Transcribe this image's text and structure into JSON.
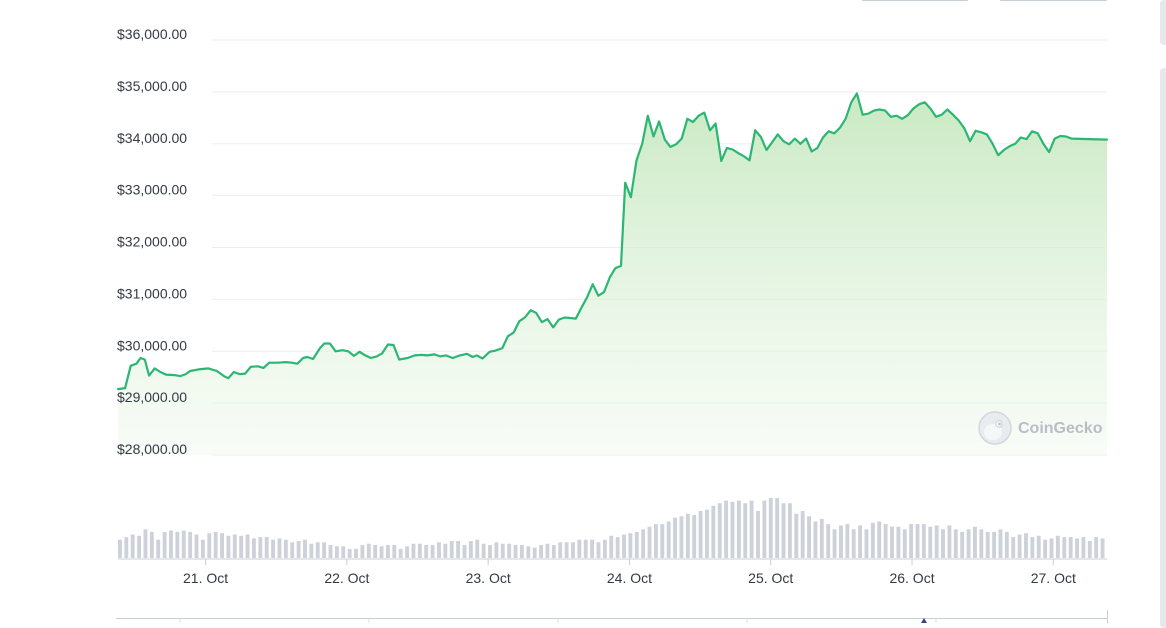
{
  "chart_data": {
    "type": "line",
    "ylim": [
      28000,
      36000
    ],
    "y_ticks": [
      "$28,000.00",
      "$29,000.00",
      "$30,000.00",
      "$31,000.00",
      "$32,000.00",
      "$33,000.00",
      "$34,000.00",
      "$35,000.00",
      "$36,000.00"
    ],
    "y_tick_values": [
      28000,
      29000,
      30000,
      31000,
      32000,
      33000,
      34000,
      35000,
      36000
    ],
    "x_ticks": [
      "21. Oct",
      "22. Oct",
      "23. Oct",
      "24. Oct",
      "25. Oct",
      "26. Oct",
      "27. Oct"
    ],
    "x_range_days": [
      20.38,
      27.38
    ],
    "x_tick_values_days": [
      21,
      22,
      23,
      24,
      25,
      26,
      27
    ],
    "grid": true,
    "series": [
      {
        "values": [
          [
            20.38,
            29270
          ],
          [
            20.43,
            29290
          ],
          [
            20.47,
            29720
          ],
          [
            20.51,
            29760
          ],
          [
            20.54,
            29870
          ],
          [
            20.57,
            29840
          ],
          [
            20.6,
            29530
          ],
          [
            20.64,
            29670
          ],
          [
            20.68,
            29600
          ],
          [
            20.72,
            29550
          ],
          [
            20.78,
            29540
          ],
          [
            20.82,
            29520
          ],
          [
            20.86,
            29560
          ],
          [
            20.89,
            29620
          ],
          [
            20.95,
            29650
          ],
          [
            21.02,
            29670
          ],
          [
            21.08,
            29620
          ],
          [
            21.13,
            29520
          ],
          [
            21.16,
            29480
          ],
          [
            21.2,
            29600
          ],
          [
            21.24,
            29560
          ],
          [
            21.28,
            29570
          ],
          [
            21.32,
            29700
          ],
          [
            21.37,
            29710
          ],
          [
            21.41,
            29680
          ],
          [
            21.45,
            29780
          ],
          [
            21.51,
            29780
          ],
          [
            21.57,
            29790
          ],
          [
            21.61,
            29780
          ],
          [
            21.65,
            29760
          ],
          [
            21.69,
            29870
          ],
          [
            21.72,
            29890
          ],
          [
            21.76,
            29850
          ],
          [
            21.81,
            30060
          ],
          [
            21.84,
            30150
          ],
          [
            21.88,
            30150
          ],
          [
            21.92,
            30000
          ],
          [
            21.97,
            30020
          ],
          [
            22.01,
            30000
          ],
          [
            22.05,
            29910
          ],
          [
            22.09,
            29990
          ],
          [
            22.13,
            29920
          ],
          [
            22.17,
            29870
          ],
          [
            22.21,
            29900
          ],
          [
            22.25,
            29960
          ],
          [
            22.29,
            30130
          ],
          [
            22.33,
            30120
          ],
          [
            22.37,
            29840
          ],
          [
            22.43,
            29870
          ],
          [
            22.48,
            29920
          ],
          [
            22.53,
            29930
          ],
          [
            22.57,
            29920
          ],
          [
            22.62,
            29940
          ],
          [
            22.66,
            29900
          ],
          [
            22.7,
            29920
          ],
          [
            22.75,
            29870
          ],
          [
            22.8,
            29920
          ],
          [
            22.85,
            29950
          ],
          [
            22.89,
            29890
          ],
          [
            22.92,
            29920
          ],
          [
            22.96,
            29860
          ],
          [
            23.01,
            29990
          ],
          [
            23.05,
            30010
          ],
          [
            23.1,
            30060
          ],
          [
            23.14,
            30290
          ],
          [
            23.18,
            30360
          ],
          [
            23.22,
            30580
          ],
          [
            23.26,
            30650
          ],
          [
            23.3,
            30790
          ],
          [
            23.34,
            30740
          ],
          [
            23.38,
            30560
          ],
          [
            23.42,
            30620
          ],
          [
            23.46,
            30460
          ],
          [
            23.5,
            30610
          ],
          [
            23.54,
            30650
          ],
          [
            23.58,
            30640
          ],
          [
            23.62,
            30630
          ],
          [
            23.66,
            30840
          ],
          [
            23.7,
            31040
          ],
          [
            23.74,
            31290
          ],
          [
            23.78,
            31070
          ],
          [
            23.82,
            31140
          ],
          [
            23.86,
            31420
          ],
          [
            23.9,
            31600
          ],
          [
            23.94,
            31650
          ],
          [
            23.97,
            33250
          ],
          [
            24.01,
            32970
          ],
          [
            24.05,
            33680
          ],
          [
            24.09,
            34000
          ],
          [
            24.13,
            34540
          ],
          [
            24.17,
            34140
          ],
          [
            24.21,
            34430
          ],
          [
            24.25,
            34080
          ],
          [
            24.29,
            33940
          ],
          [
            24.33,
            33990
          ],
          [
            24.37,
            34100
          ],
          [
            24.41,
            34480
          ],
          [
            24.45,
            34420
          ],
          [
            24.49,
            34540
          ],
          [
            24.53,
            34600
          ],
          [
            24.57,
            34260
          ],
          [
            24.61,
            34390
          ],
          [
            24.65,
            33670
          ],
          [
            24.69,
            33920
          ],
          [
            24.73,
            33890
          ],
          [
            24.77,
            33820
          ],
          [
            24.81,
            33760
          ],
          [
            24.85,
            33680
          ],
          [
            24.89,
            34260
          ],
          [
            24.93,
            34130
          ],
          [
            24.97,
            33880
          ],
          [
            25.01,
            34030
          ],
          [
            25.05,
            34180
          ],
          [
            25.09,
            34050
          ],
          [
            25.13,
            33990
          ],
          [
            25.17,
            34100
          ],
          [
            25.21,
            34000
          ],
          [
            25.25,
            34100
          ],
          [
            25.29,
            33850
          ],
          [
            25.33,
            33920
          ],
          [
            25.37,
            34120
          ],
          [
            25.41,
            34240
          ],
          [
            25.45,
            34200
          ],
          [
            25.49,
            34310
          ],
          [
            25.53,
            34480
          ],
          [
            25.57,
            34800
          ],
          [
            25.61,
            34970
          ],
          [
            25.65,
            34560
          ],
          [
            25.69,
            34580
          ],
          [
            25.73,
            34640
          ],
          [
            25.77,
            34660
          ],
          [
            25.81,
            34640
          ],
          [
            25.85,
            34520
          ],
          [
            25.89,
            34540
          ],
          [
            25.93,
            34480
          ],
          [
            25.97,
            34550
          ],
          [
            26.01,
            34680
          ],
          [
            26.05,
            34760
          ],
          [
            26.09,
            34800
          ],
          [
            26.13,
            34680
          ],
          [
            26.17,
            34520
          ],
          [
            26.21,
            34560
          ],
          [
            26.25,
            34660
          ],
          [
            26.29,
            34560
          ],
          [
            26.33,
            34450
          ],
          [
            26.37,
            34300
          ],
          [
            26.41,
            34050
          ],
          [
            26.45,
            34250
          ],
          [
            26.49,
            34220
          ],
          [
            26.53,
            34180
          ],
          [
            26.57,
            34000
          ],
          [
            26.61,
            33780
          ],
          [
            26.65,
            33880
          ],
          [
            26.69,
            33950
          ],
          [
            26.73,
            34000
          ],
          [
            26.77,
            34120
          ],
          [
            26.81,
            34090
          ],
          [
            26.85,
            34240
          ],
          [
            26.89,
            34200
          ],
          [
            26.93,
            34000
          ],
          [
            26.97,
            33840
          ],
          [
            27.01,
            34100
          ],
          [
            27.05,
            34150
          ],
          [
            27.09,
            34140
          ],
          [
            27.13,
            34100
          ],
          [
            27.38,
            34080
          ]
        ]
      }
    ],
    "volume": [
      14,
      16,
      18,
      17,
      22,
      20,
      14,
      20,
      21,
      20,
      21,
      20,
      18,
      14,
      19,
      20,
      19,
      17,
      18,
      17,
      18,
      15,
      16,
      16,
      14,
      15,
      14,
      12,
      13,
      14,
      11,
      12,
      12,
      10,
      9,
      9,
      7,
      7,
      10,
      11,
      10,
      9,
      10,
      10,
      7,
      9,
      11,
      11,
      10,
      10,
      12,
      11,
      13,
      13,
      10,
      13,
      14,
      11,
      10,
      12,
      11,
      11,
      10,
      10,
      9,
      8,
      10,
      11,
      10,
      12,
      12,
      12,
      14,
      14,
      14,
      12,
      14,
      17,
      16,
      18,
      19,
      20,
      22,
      24,
      26,
      26,
      28,
      31,
      32,
      34,
      33,
      36,
      37,
      40,
      42,
      44,
      43,
      44,
      42,
      44,
      36,
      44,
      46,
      46,
      42,
      42,
      34,
      36,
      32,
      28,
      30,
      26,
      22,
      25,
      26,
      22,
      25,
      22,
      27,
      28,
      26,
      24,
      24,
      22,
      26,
      26,
      26,
      24,
      25,
      22,
      25,
      22,
      20,
      22,
      24,
      22,
      20,
      20,
      22,
      20,
      16,
      18,
      19,
      16,
      17,
      14,
      15,
      17,
      16,
      16,
      15,
      16,
      13,
      16,
      15
    ],
    "watermark": "CoinGecko"
  }
}
